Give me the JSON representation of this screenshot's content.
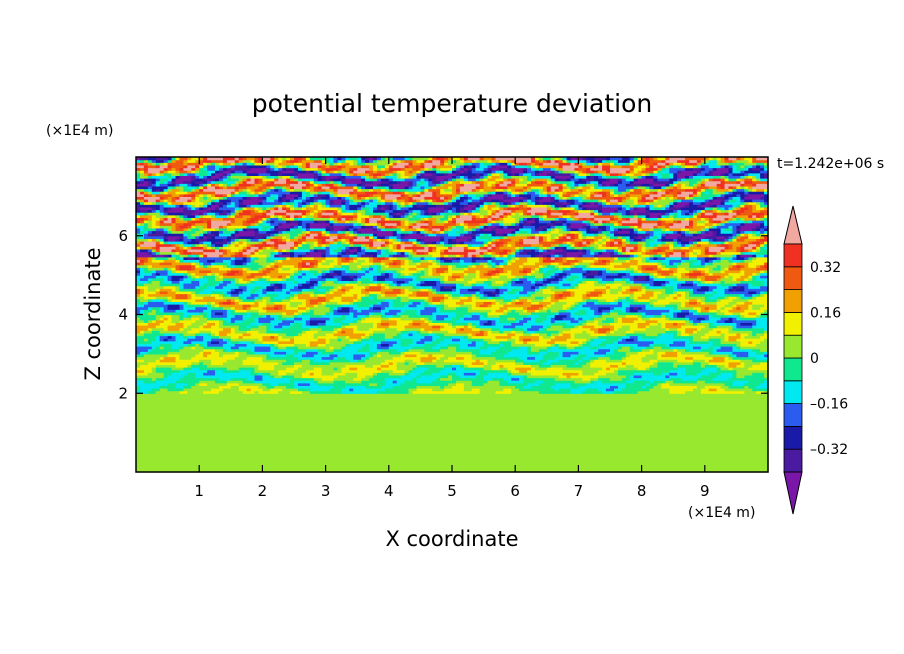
{
  "chart_data": {
    "type": "heatmap",
    "title": "potential temperature deviation",
    "xlabel": "X coordinate",
    "ylabel": "Z coordinate",
    "x_unit": "(×1E4 m)",
    "y_unit": "(×1E4 m)",
    "time_label": "t=1.242e+06 s",
    "xlim": [
      0,
      10
    ],
    "ylim": [
      0,
      8
    ],
    "x_ticks": [
      1,
      2,
      3,
      4,
      5,
      6,
      7,
      8,
      9
    ],
    "y_ticks": [
      2,
      4,
      6
    ],
    "x_tick_labels": [
      "1",
      "2",
      "3",
      "4",
      "5",
      "6",
      "7",
      "8",
      "9"
    ],
    "y_tick_labels": [
      "2",
      "4",
      "6"
    ],
    "colorbar": {
      "levels": [
        -0.4,
        -0.32,
        -0.24,
        -0.16,
        -0.08,
        0,
        0.08,
        0.16,
        0.24,
        0.32,
        0.4
      ],
      "tick_values": [
        0.32,
        0.16,
        0,
        -0.16,
        -0.32
      ],
      "tick_labels": [
        "0.32",
        "0.16",
        "0",
        "–0.16",
        "–0.32"
      ],
      "colors": [
        "#7a16a8",
        "#4a1aa0",
        "#1a1aa8",
        "#2a5cf0",
        "#00e8f0",
        "#10e890",
        "#98e830",
        "#f0f000",
        "#f0a000",
        "#f05a10",
        "#f03020",
        "#f0a8a0"
      ],
      "extend": "both"
    },
    "regions": [
      {
        "z_range": [
          0,
          2.0
        ],
        "dominant_values": [
          0,
          0.04
        ]
      },
      {
        "z_range": [
          2.0,
          5.5
        ],
        "dominant_values": [
          -0.32,
          0.32
        ]
      },
      {
        "z_range": [
          5.5,
          8.0
        ],
        "dominant_values": [
          -0.45,
          0.45
        ]
      }
    ]
  }
}
